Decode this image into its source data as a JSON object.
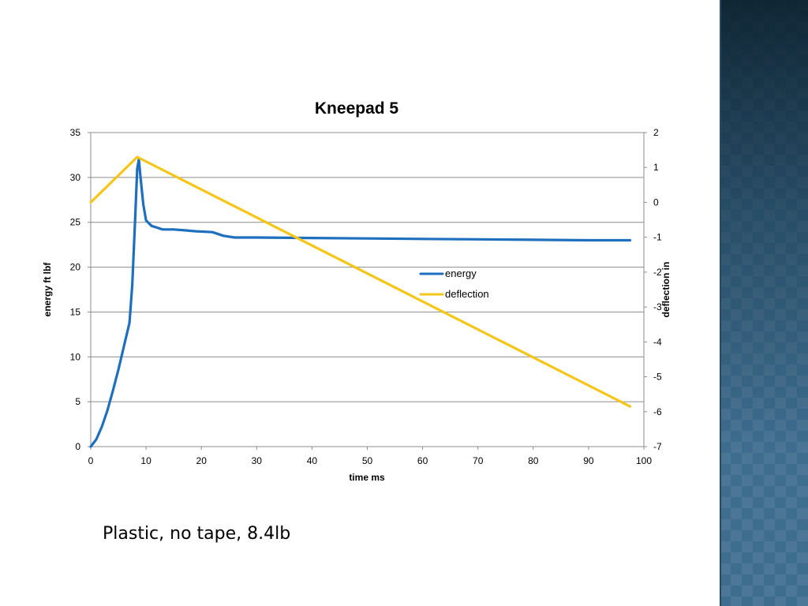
{
  "caption": "Plastic, no tape, 8.4lb",
  "colors": {
    "energy": "#1f6fbf",
    "deflection": "#f5c518",
    "grid": "#8c8c8c"
  },
  "chart_data": {
    "type": "line",
    "title": "Kneepad 5",
    "xlabel": "time ms",
    "ylabel": "energy ft lbf",
    "y2label": "deflection in",
    "xlim": [
      0,
      100
    ],
    "ylim": [
      0,
      35
    ],
    "y2lim": [
      -7,
      2
    ],
    "xticks": [
      "0",
      "10",
      "20",
      "30",
      "40",
      "50",
      "60",
      "70",
      "80",
      "90",
      "100"
    ],
    "yticks": [
      "0",
      "5",
      "10",
      "15",
      "20",
      "25",
      "30",
      "35"
    ],
    "y2ticks": [
      "-7",
      "-6",
      "-5",
      "-4",
      "-3",
      "-2",
      "-1",
      "0",
      "1",
      "2"
    ],
    "grid": true,
    "legend_position": "center-right",
    "series": [
      {
        "name": "energy",
        "axis": "left",
        "color": "#1f6fbf",
        "points": [
          [
            0,
            0
          ],
          [
            1,
            0.8
          ],
          [
            2,
            2.2
          ],
          [
            3,
            4
          ],
          [
            4,
            6.2
          ],
          [
            5,
            8.6
          ],
          [
            6,
            11.2
          ],
          [
            7,
            13.8
          ],
          [
            7.5,
            18
          ],
          [
            8,
            25
          ],
          [
            8.4,
            31
          ],
          [
            8.7,
            32
          ],
          [
            9,
            30
          ],
          [
            9.5,
            27
          ],
          [
            10,
            25.2
          ],
          [
            11,
            24.6
          ],
          [
            12,
            24.4
          ],
          [
            13,
            24.2
          ],
          [
            15,
            24.2
          ],
          [
            17,
            24.1
          ],
          [
            19,
            24
          ],
          [
            22,
            23.9
          ],
          [
            24,
            23.5
          ],
          [
            26,
            23.3
          ],
          [
            30,
            23.3
          ],
          [
            40,
            23.25
          ],
          [
            50,
            23.2
          ],
          [
            60,
            23.15
          ],
          [
            70,
            23.1
          ],
          [
            80,
            23.05
          ],
          [
            90,
            23.0
          ],
          [
            97.5,
            23.0
          ]
        ]
      },
      {
        "name": "deflection",
        "axis": "right",
        "color": "#f5c518",
        "points": [
          [
            0,
            0
          ],
          [
            8.4,
            1.3
          ],
          [
            97.5,
            -5.85
          ]
        ]
      }
    ]
  }
}
